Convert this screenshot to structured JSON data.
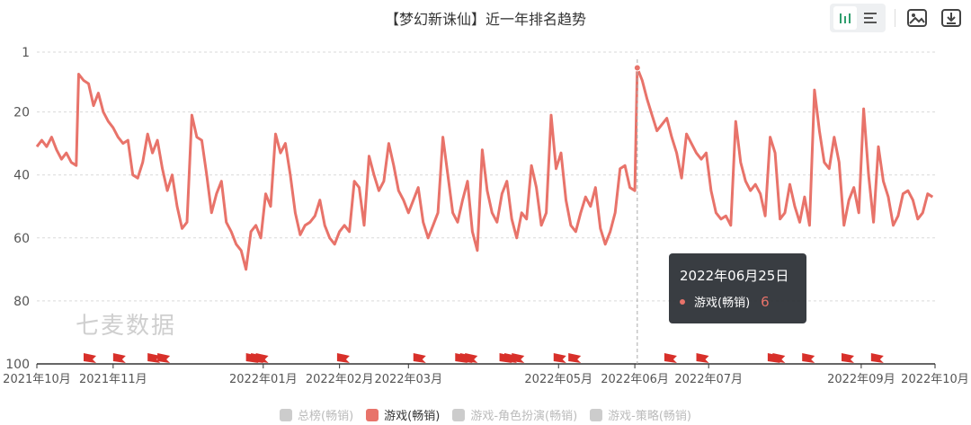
{
  "toolbar": {
    "icons": [
      "bar-chart-icon",
      "horizontal-bar-icon",
      "save-image-icon",
      "download-icon"
    ]
  },
  "watermark": "七麦数据",
  "tooltip": {
    "date": "2022年06月25日",
    "series": "游戏(畅销)",
    "value": "6"
  },
  "colors": {
    "line": "#e8736a",
    "flag": "#d8302a",
    "grid": "#d9d9d9",
    "axis_text": "#555555",
    "legend_inactive": "#cccccc"
  },
  "legend": [
    {
      "label": "总榜(畅销)",
      "active": false
    },
    {
      "label": "游戏(畅销)",
      "active": true
    },
    {
      "label": "游戏-角色扮演(畅销)",
      "active": false
    },
    {
      "label": "游戏-策略(畅销)",
      "active": false
    }
  ],
  "chart_data": {
    "type": "line",
    "title": "【梦幻新诛仙】近一年排名趋势",
    "y_inverted": true,
    "ylim": [
      1,
      100
    ],
    "yticks": [
      1,
      20,
      40,
      60,
      80,
      100
    ],
    "xlim": [
      "2021-10-01",
      "2022-10-01"
    ],
    "xticks": [
      {
        "date": "2021-10-01",
        "label": "2021年10月"
      },
      {
        "date": "2021-11-01",
        "label": "2021年11月"
      },
      {
        "date": "2022-01-01",
        "label": "2022年01月"
      },
      {
        "date": "2022-02-01",
        "label": "2022年02月"
      },
      {
        "date": "2022-03-01",
        "label": "2022年03月"
      },
      {
        "date": "2022-05-01",
        "label": "2022年05月"
      },
      {
        "date": "2022-06-01",
        "label": "2022年06月"
      },
      {
        "date": "2022-07-01",
        "label": "2022年07月"
      },
      {
        "date": "2022-09-01",
        "label": "2022年09月"
      },
      {
        "date": "2022-10-01",
        "label": "2022年10月"
      }
    ],
    "grid": true,
    "series": [
      {
        "name": "游戏(畅销)",
        "points": [
          [
            "2021-10-01",
            31
          ],
          [
            "2021-10-03",
            29
          ],
          [
            "2021-10-05",
            31
          ],
          [
            "2021-10-07",
            28
          ],
          [
            "2021-10-09",
            32
          ],
          [
            "2021-10-11",
            35
          ],
          [
            "2021-10-13",
            33
          ],
          [
            "2021-10-15",
            36
          ],
          [
            "2021-10-17",
            37
          ],
          [
            "2021-10-18",
            8
          ],
          [
            "2021-10-20",
            10
          ],
          [
            "2021-10-22",
            11
          ],
          [
            "2021-10-24",
            18
          ],
          [
            "2021-10-26",
            14
          ],
          [
            "2021-10-28",
            20
          ],
          [
            "2021-10-30",
            23
          ],
          [
            "2021-11-01",
            25
          ],
          [
            "2021-11-03",
            28
          ],
          [
            "2021-11-05",
            30
          ],
          [
            "2021-11-07",
            29
          ],
          [
            "2021-11-09",
            40
          ],
          [
            "2021-11-11",
            41
          ],
          [
            "2021-11-13",
            36
          ],
          [
            "2021-11-15",
            27
          ],
          [
            "2021-11-17",
            33
          ],
          [
            "2021-11-19",
            29
          ],
          [
            "2021-11-21",
            38
          ],
          [
            "2021-11-23",
            45
          ],
          [
            "2021-11-25",
            40
          ],
          [
            "2021-11-27",
            50
          ],
          [
            "2021-11-29",
            57
          ],
          [
            "2021-12-01",
            55
          ],
          [
            "2021-12-03",
            21
          ],
          [
            "2021-12-05",
            28
          ],
          [
            "2021-12-07",
            29
          ],
          [
            "2021-12-09",
            40
          ],
          [
            "2021-12-11",
            52
          ],
          [
            "2021-12-13",
            46
          ],
          [
            "2021-12-15",
            42
          ],
          [
            "2021-12-17",
            55
          ],
          [
            "2021-12-19",
            58
          ],
          [
            "2021-12-21",
            62
          ],
          [
            "2021-12-23",
            64
          ],
          [
            "2021-12-25",
            70
          ],
          [
            "2021-12-27",
            58
          ],
          [
            "2021-12-29",
            56
          ],
          [
            "2021-12-31",
            60
          ],
          [
            "2022-01-02",
            46
          ],
          [
            "2022-01-04",
            50
          ],
          [
            "2022-01-06",
            27
          ],
          [
            "2022-01-08",
            33
          ],
          [
            "2022-01-10",
            30
          ],
          [
            "2022-01-12",
            40
          ],
          [
            "2022-01-14",
            52
          ],
          [
            "2022-01-16",
            59
          ],
          [
            "2022-01-18",
            56
          ],
          [
            "2022-01-20",
            55
          ],
          [
            "2022-01-22",
            53
          ],
          [
            "2022-01-24",
            48
          ],
          [
            "2022-01-26",
            56
          ],
          [
            "2022-01-28",
            60
          ],
          [
            "2022-01-30",
            62
          ],
          [
            "2022-02-01",
            58
          ],
          [
            "2022-02-03",
            56
          ],
          [
            "2022-02-05",
            58
          ],
          [
            "2022-02-07",
            42
          ],
          [
            "2022-02-09",
            44
          ],
          [
            "2022-02-11",
            56
          ],
          [
            "2022-02-13",
            34
          ],
          [
            "2022-02-15",
            40
          ],
          [
            "2022-02-17",
            45
          ],
          [
            "2022-02-19",
            42
          ],
          [
            "2022-02-21",
            30
          ],
          [
            "2022-02-23",
            37
          ],
          [
            "2022-02-25",
            45
          ],
          [
            "2022-02-27",
            48
          ],
          [
            "2022-03-01",
            52
          ],
          [
            "2022-03-03",
            48
          ],
          [
            "2022-03-05",
            44
          ],
          [
            "2022-03-07",
            55
          ],
          [
            "2022-03-09",
            60
          ],
          [
            "2022-03-11",
            56
          ],
          [
            "2022-03-13",
            52
          ],
          [
            "2022-03-15",
            28
          ],
          [
            "2022-03-17",
            40
          ],
          [
            "2022-03-19",
            52
          ],
          [
            "2022-03-21",
            55
          ],
          [
            "2022-03-23",
            48
          ],
          [
            "2022-03-25",
            42
          ],
          [
            "2022-03-27",
            58
          ],
          [
            "2022-03-29",
            64
          ],
          [
            "2022-03-31",
            32
          ],
          [
            "2022-04-02",
            45
          ],
          [
            "2022-04-04",
            52
          ],
          [
            "2022-04-06",
            55
          ],
          [
            "2022-04-08",
            46
          ],
          [
            "2022-04-10",
            42
          ],
          [
            "2022-04-12",
            54
          ],
          [
            "2022-04-14",
            60
          ],
          [
            "2022-04-16",
            52
          ],
          [
            "2022-04-18",
            54
          ],
          [
            "2022-04-20",
            37
          ],
          [
            "2022-04-22",
            44
          ],
          [
            "2022-04-24",
            56
          ],
          [
            "2022-04-26",
            52
          ],
          [
            "2022-04-28",
            21
          ],
          [
            "2022-04-30",
            38
          ],
          [
            "2022-05-02",
            33
          ],
          [
            "2022-05-04",
            48
          ],
          [
            "2022-05-06",
            56
          ],
          [
            "2022-05-08",
            58
          ],
          [
            "2022-05-10",
            52
          ],
          [
            "2022-05-12",
            47
          ],
          [
            "2022-05-14",
            50
          ],
          [
            "2022-05-16",
            44
          ],
          [
            "2022-05-18",
            57
          ],
          [
            "2022-05-20",
            62
          ],
          [
            "2022-05-22",
            58
          ],
          [
            "2022-05-24",
            52
          ],
          [
            "2022-05-26",
            38
          ],
          [
            "2022-05-28",
            37
          ],
          [
            "2022-05-30",
            44
          ],
          [
            "2022-06-01",
            45
          ],
          [
            "2022-06-02",
            6
          ],
          [
            "2022-06-04",
            10
          ],
          [
            "2022-06-06",
            16
          ],
          [
            "2022-06-08",
            21
          ],
          [
            "2022-06-10",
            26
          ],
          [
            "2022-06-12",
            24
          ],
          [
            "2022-06-14",
            22
          ],
          [
            "2022-06-16",
            28
          ],
          [
            "2022-06-18",
            33
          ],
          [
            "2022-06-20",
            41
          ],
          [
            "2022-06-22",
            27
          ],
          [
            "2022-06-24",
            30
          ],
          [
            "2022-06-26",
            33
          ],
          [
            "2022-06-28",
            35
          ],
          [
            "2022-06-30",
            33
          ],
          [
            "2022-07-02",
            45
          ],
          [
            "2022-07-04",
            52
          ],
          [
            "2022-07-06",
            54
          ],
          [
            "2022-07-08",
            53
          ],
          [
            "2022-07-10",
            56
          ],
          [
            "2022-07-12",
            23
          ],
          [
            "2022-07-14",
            36
          ],
          [
            "2022-07-16",
            42
          ],
          [
            "2022-07-18",
            45
          ],
          [
            "2022-07-20",
            43
          ],
          [
            "2022-07-22",
            46
          ],
          [
            "2022-07-24",
            53
          ],
          [
            "2022-07-26",
            28
          ],
          [
            "2022-07-28",
            33
          ],
          [
            "2022-07-30",
            54
          ],
          [
            "2022-08-01",
            52
          ],
          [
            "2022-08-03",
            43
          ],
          [
            "2022-08-05",
            50
          ],
          [
            "2022-08-07",
            55
          ],
          [
            "2022-08-09",
            47
          ],
          [
            "2022-08-11",
            56
          ],
          [
            "2022-08-13",
            13
          ],
          [
            "2022-08-15",
            26
          ],
          [
            "2022-08-17",
            36
          ],
          [
            "2022-08-19",
            38
          ],
          [
            "2022-08-21",
            28
          ],
          [
            "2022-08-23",
            36
          ],
          [
            "2022-08-25",
            56
          ],
          [
            "2022-08-27",
            48
          ],
          [
            "2022-08-29",
            44
          ],
          [
            "2022-08-31",
            52
          ],
          [
            "2022-09-02",
            19
          ],
          [
            "2022-09-04",
            40
          ],
          [
            "2022-09-06",
            55
          ],
          [
            "2022-09-08",
            31
          ],
          [
            "2022-09-10",
            42
          ],
          [
            "2022-09-12",
            47
          ],
          [
            "2022-09-14",
            56
          ],
          [
            "2022-09-16",
            53
          ],
          [
            "2022-09-18",
            46
          ],
          [
            "2022-09-20",
            45
          ],
          [
            "2022-09-22",
            48
          ],
          [
            "2022-09-24",
            54
          ],
          [
            "2022-09-26",
            52
          ],
          [
            "2022-09-28",
            46
          ],
          [
            "2022-09-30",
            47
          ]
        ]
      }
    ],
    "event_flags": [
      "2021-10-20",
      "2021-11-01",
      "2021-11-15",
      "2021-11-19",
      "2021-12-25",
      "2021-12-27",
      "2021-12-29",
      "2022-01-31",
      "2022-03-03",
      "2022-03-20",
      "2022-03-22",
      "2022-03-24",
      "2022-04-07",
      "2022-04-09",
      "2022-04-12",
      "2022-04-29",
      "2022-05-05",
      "2022-06-13",
      "2022-06-26",
      "2022-07-25",
      "2022-07-27",
      "2022-08-08",
      "2022-08-24",
      "2022-09-05"
    ]
  }
}
